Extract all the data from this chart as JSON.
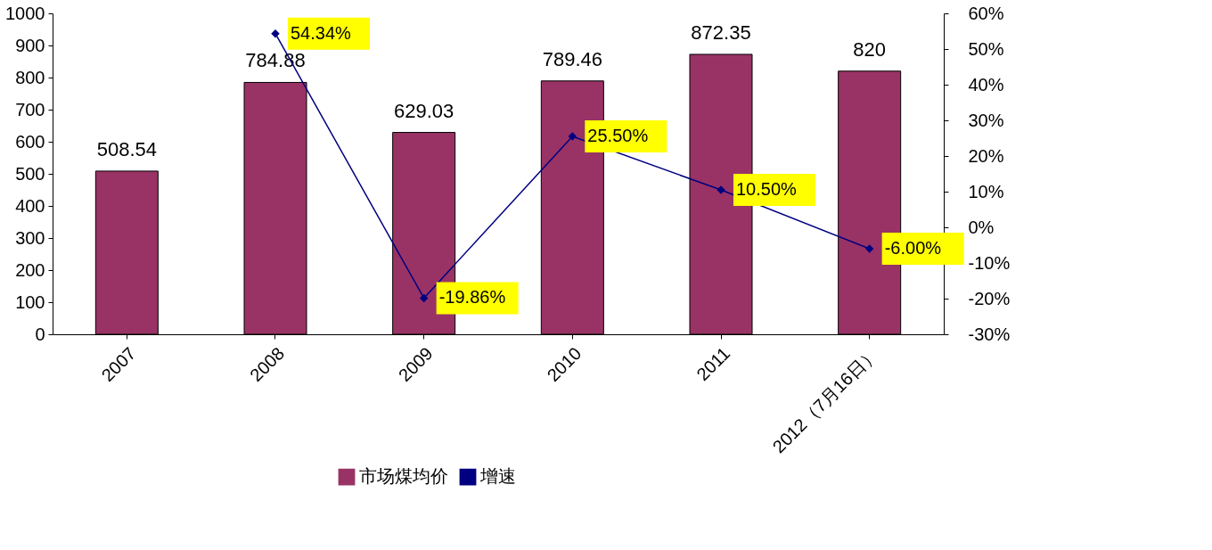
{
  "chart_data": {
    "type": "bar",
    "categories": [
      "2007",
      "2008",
      "2009",
      "2010",
      "2011",
      "2012（7月16日）"
    ],
    "series": [
      {
        "name": "市场煤均价",
        "color": "#993366",
        "values": [
          508.54,
          784.88,
          629.03,
          789.46,
          872.35,
          820
        ],
        "value_labels": [
          "508.54",
          "784.88",
          "629.03",
          "789.46",
          "872.35",
          "820"
        ]
      },
      {
        "name": "增速",
        "type": "line",
        "axis": "y2",
        "color": "#000080",
        "marker": "diamond",
        "values": [
          null,
          54.34,
          -19.86,
          25.5,
          10.5,
          -6.0
        ],
        "value_labels": [
          null,
          "54.34%",
          "-19.86%",
          "25.50%",
          "10.50%",
          "-6.00%"
        ]
      }
    ],
    "ylim": [
      0,
      1000
    ],
    "yticks": [
      0,
      100,
      200,
      300,
      400,
      500,
      600,
      700,
      800,
      900,
      1000
    ],
    "y2lim": [
      -30,
      60
    ],
    "y2ticks": [
      {
        "value": -30,
        "label": "-30%"
      },
      {
        "value": -20,
        "label": "-20%"
      },
      {
        "value": -10,
        "label": "-10%"
      },
      {
        "value": 0,
        "label": "0%"
      },
      {
        "value": 10,
        "label": "10%"
      },
      {
        "value": 20,
        "label": "20%"
      },
      {
        "value": 30,
        "label": "30%"
      },
      {
        "value": 40,
        "label": "40%"
      },
      {
        "value": 50,
        "label": "50%"
      },
      {
        "value": 60,
        "label": "60%"
      }
    ],
    "grid": false,
    "legend": "bottom"
  }
}
